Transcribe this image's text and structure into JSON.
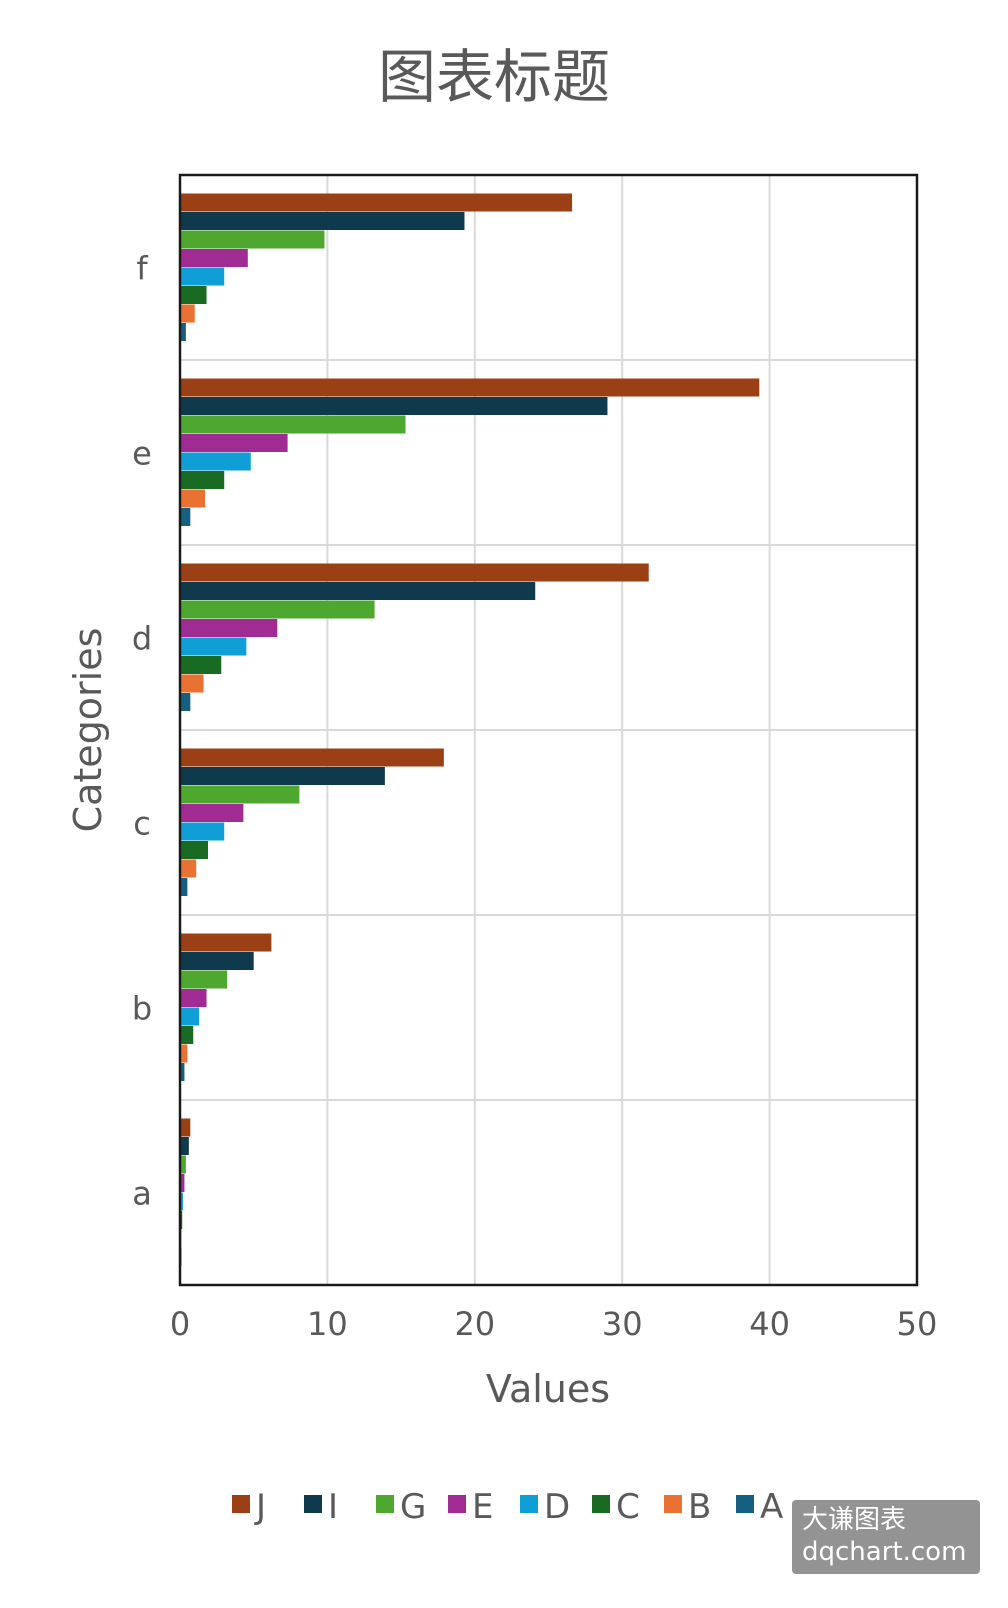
{
  "chart_data": {
    "type": "bar",
    "orientation": "horizontal",
    "title": "图表标题",
    "xlabel": "Values",
    "ylabel": "Categories",
    "categories": [
      "a",
      "b",
      "c",
      "d",
      "e",
      "f"
    ],
    "xlim": [
      0,
      50
    ],
    "xticks": [
      "0",
      "10",
      "20",
      "30",
      "40",
      "50"
    ],
    "grid": true,
    "legend_position": "bottom",
    "series": [
      {
        "name": "J",
        "color": "#9B3F14",
        "values": [
          0.7,
          6.2,
          17.9,
          31.8,
          39.3,
          26.6
        ]
      },
      {
        "name": "I",
        "color": "#0F3A4E",
        "values": [
          0.6,
          5.0,
          13.9,
          24.1,
          29.0,
          19.3
        ]
      },
      {
        "name": "G",
        "color": "#4EA72E",
        "values": [
          0.4,
          3.2,
          8.1,
          13.2,
          15.3,
          9.8
        ]
      },
      {
        "name": "E",
        "color": "#A02B93",
        "values": [
          0.3,
          1.8,
          4.3,
          6.6,
          7.3,
          4.6
        ]
      },
      {
        "name": "D",
        "color": "#0F9ED5",
        "values": [
          0.2,
          1.3,
          3.0,
          4.5,
          4.8,
          3.0
        ]
      },
      {
        "name": "C",
        "color": "#196B24",
        "values": [
          0.15,
          0.9,
          1.9,
          2.8,
          3.0,
          1.8
        ]
      },
      {
        "name": "B",
        "color": "#E97132",
        "values": [
          0.1,
          0.5,
          1.1,
          1.6,
          1.7,
          1.0
        ]
      },
      {
        "name": "A",
        "color": "#156082",
        "values": [
          0.1,
          0.3,
          0.5,
          0.7,
          0.7,
          0.4
        ]
      }
    ]
  },
  "watermark": {
    "line1": "大谦图表",
    "line2": "dqchart.com"
  }
}
